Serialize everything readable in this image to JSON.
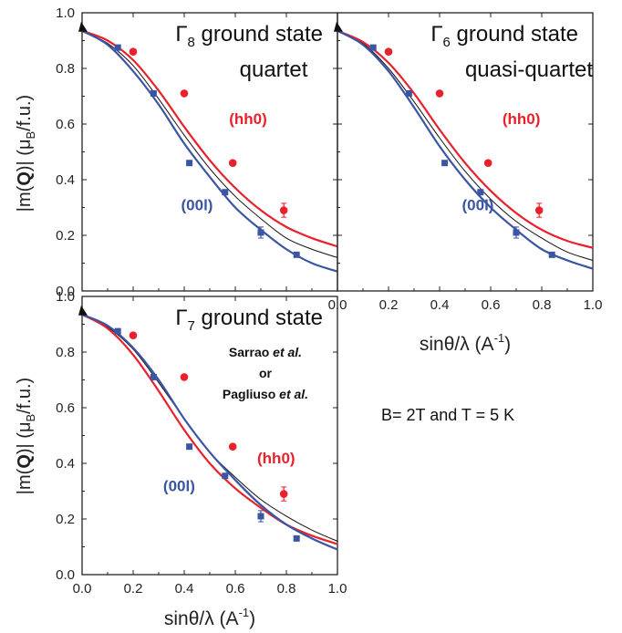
{
  "chart_data": {
    "type": "scatter",
    "xlim": [
      0,
      1.0
    ],
    "ylim": [
      0,
      1.0
    ],
    "x_ticks": [
      "0.0",
      "0.2",
      "0.4",
      "0.6",
      "0.8",
      "1.0"
    ],
    "y_ticks": [
      "0.0",
      "0.2",
      "0.4",
      "0.6",
      "0.8",
      "1.0"
    ],
    "x_label": {
      "base": "sinθ/λ  (A",
      "sup": "-1",
      "end": ")"
    },
    "y_label": {
      "prefix": "|m(",
      "bold": "Q",
      "mid": ")|  (μ",
      "sub": "B",
      "end": "/f.u.)"
    },
    "condition_text": "B= 2T and T = 5 K",
    "series_labels": {
      "hh0": "(hh0)",
      "001": "(00l)"
    },
    "origin_marker": {
      "x": 0.0,
      "y": 0.945
    },
    "panels": [
      {
        "id": "gamma8",
        "title_sym": "Γ",
        "title_sub": "8",
        "title_rest": " ground state",
        "subtitle": "quartet",
        "hh0_points": [
          [
            0.2,
            0.86
          ],
          [
            0.4,
            0.71
          ],
          [
            0.59,
            0.46
          ],
          [
            0.79,
            0.29
          ]
        ],
        "hh0_err": [
          0,
          0,
          0,
          0.025
        ],
        "001_points": [
          [
            0.14,
            0.875
          ],
          [
            0.28,
            0.71
          ],
          [
            0.42,
            0.46
          ],
          [
            0.56,
            0.355
          ],
          [
            0.7,
            0.21
          ],
          [
            0.84,
            0.13
          ]
        ],
        "001_err": [
          0,
          0,
          0,
          0,
          0.02,
          0
        ],
        "curves": {
          "hh0": [
            [
              0,
              0.935
            ],
            [
              0.1,
              0.9
            ],
            [
              0.2,
              0.83
            ],
            [
              0.3,
              0.72
            ],
            [
              0.4,
              0.59
            ],
            [
              0.5,
              0.47
            ],
            [
              0.6,
              0.37
            ],
            [
              0.7,
              0.29
            ],
            [
              0.8,
              0.23
            ],
            [
              0.9,
              0.19
            ],
            [
              1.0,
              0.16
            ]
          ],
          "black": [
            [
              0,
              0.935
            ],
            [
              0.1,
              0.89
            ],
            [
              0.2,
              0.81
            ],
            [
              0.3,
              0.69
            ],
            [
              0.4,
              0.56
            ],
            [
              0.5,
              0.44
            ],
            [
              0.6,
              0.34
            ],
            [
              0.7,
              0.26
            ],
            [
              0.8,
              0.19
            ],
            [
              0.9,
              0.15
            ],
            [
              1.0,
              0.12
            ]
          ],
          "001": [
            [
              0,
              0.935
            ],
            [
              0.1,
              0.885
            ],
            [
              0.2,
              0.79
            ],
            [
              0.3,
              0.67
            ],
            [
              0.4,
              0.53
            ],
            [
              0.5,
              0.41
            ],
            [
              0.6,
              0.3
            ],
            [
              0.7,
              0.22
            ],
            [
              0.8,
              0.15
            ],
            [
              0.9,
              0.1
            ],
            [
              1.0,
              0.07
            ]
          ]
        }
      },
      {
        "id": "gamma6",
        "title_sym": "Γ",
        "title_sub": "6",
        "title_rest": " ground state",
        "subtitle": "quasi-quartet",
        "hh0_points": [
          [
            0.2,
            0.86
          ],
          [
            0.4,
            0.71
          ],
          [
            0.59,
            0.46
          ],
          [
            0.79,
            0.29
          ]
        ],
        "hh0_err": [
          0,
          0,
          0,
          0.025
        ],
        "001_points": [
          [
            0.14,
            0.875
          ],
          [
            0.28,
            0.71
          ],
          [
            0.42,
            0.46
          ],
          [
            0.56,
            0.355
          ],
          [
            0.7,
            0.21
          ],
          [
            0.84,
            0.13
          ]
        ],
        "001_err": [
          0,
          0,
          0,
          0,
          0.02,
          0
        ],
        "curves": {
          "hh0": [
            [
              0,
              0.935
            ],
            [
              0.1,
              0.895
            ],
            [
              0.2,
              0.82
            ],
            [
              0.3,
              0.71
            ],
            [
              0.4,
              0.58
            ],
            [
              0.5,
              0.46
            ],
            [
              0.6,
              0.36
            ],
            [
              0.7,
              0.28
            ],
            [
              0.8,
              0.22
            ],
            [
              0.9,
              0.18
            ],
            [
              1.0,
              0.155
            ]
          ],
          "black": [
            [
              0,
              0.935
            ],
            [
              0.1,
              0.89
            ],
            [
              0.2,
              0.8
            ],
            [
              0.3,
              0.68
            ],
            [
              0.4,
              0.55
            ],
            [
              0.5,
              0.43
            ],
            [
              0.6,
              0.33
            ],
            [
              0.7,
              0.25
            ],
            [
              0.8,
              0.19
            ],
            [
              0.9,
              0.14
            ],
            [
              1.0,
              0.11
            ]
          ],
          "001": [
            [
              0,
              0.935
            ],
            [
              0.1,
              0.885
            ],
            [
              0.2,
              0.79
            ],
            [
              0.3,
              0.66
            ],
            [
              0.4,
              0.52
            ],
            [
              0.5,
              0.4
            ],
            [
              0.6,
              0.3
            ],
            [
              0.7,
              0.22
            ],
            [
              0.8,
              0.15
            ],
            [
              0.9,
              0.11
            ],
            [
              1.0,
              0.08
            ]
          ]
        }
      },
      {
        "id": "gamma7",
        "title_sym": "Γ",
        "title_sub": "7",
        "title_rest": " ground state",
        "subtitle": "",
        "citation": [
          "Sarrao et al.",
          "or",
          "Pagliuso et al."
        ],
        "hh0_points": [
          [
            0.2,
            0.86
          ],
          [
            0.4,
            0.71
          ],
          [
            0.59,
            0.46
          ],
          [
            0.79,
            0.29
          ]
        ],
        "hh0_err": [
          0,
          0,
          0,
          0.025
        ],
        "001_points": [
          [
            0.14,
            0.875
          ],
          [
            0.28,
            0.71
          ],
          [
            0.42,
            0.46
          ],
          [
            0.56,
            0.355
          ],
          [
            0.7,
            0.21
          ],
          [
            0.84,
            0.13
          ]
        ],
        "001_err": [
          0,
          0,
          0,
          0,
          0.02,
          0
        ],
        "curves": {
          "hh0": [
            [
              0,
              0.935
            ],
            [
              0.1,
              0.885
            ],
            [
              0.2,
              0.79
            ],
            [
              0.3,
              0.66
            ],
            [
              0.4,
              0.52
            ],
            [
              0.5,
              0.4
            ],
            [
              0.6,
              0.31
            ],
            [
              0.7,
              0.24
            ],
            [
              0.8,
              0.18
            ],
            [
              0.9,
              0.14
            ],
            [
              1.0,
              0.11
            ]
          ],
          "black": [
            [
              0,
              0.935
            ],
            [
              0.1,
              0.89
            ],
            [
              0.2,
              0.81
            ],
            [
              0.3,
              0.69
            ],
            [
              0.4,
              0.56
            ],
            [
              0.5,
              0.44
            ],
            [
              0.6,
              0.35
            ],
            [
              0.7,
              0.27
            ],
            [
              0.8,
              0.21
            ],
            [
              0.9,
              0.16
            ],
            [
              1.0,
              0.12
            ]
          ],
          "001": [
            [
              0,
              0.935
            ],
            [
              0.1,
              0.895
            ],
            [
              0.2,
              0.815
            ],
            [
              0.3,
              0.7
            ],
            [
              0.4,
              0.56
            ],
            [
              0.5,
              0.44
            ],
            [
              0.6,
              0.34
            ],
            [
              0.7,
              0.25
            ],
            [
              0.8,
              0.18
            ],
            [
              0.9,
              0.13
            ],
            [
              1.0,
              0.09
            ]
          ]
        }
      }
    ]
  },
  "colors": {
    "hh0": "#e8212b",
    "001": "#3a55a4",
    "theory": "#111111",
    "axis": "#222222"
  }
}
